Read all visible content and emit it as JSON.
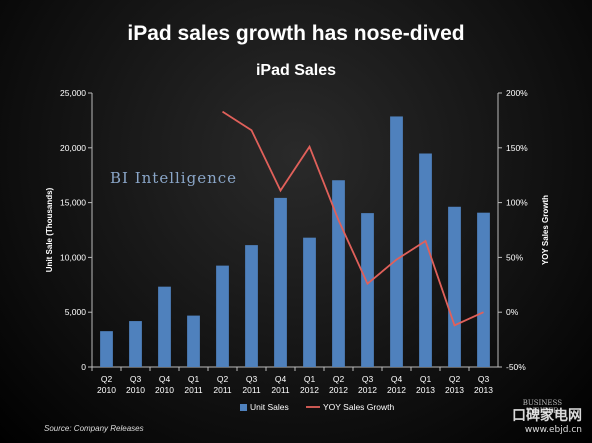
{
  "headline": "iPad sales growth has nose-dived",
  "watermark": "BI Intelligence",
  "source": "Source: Company Releases",
  "site_logo": {
    "main": "口碑家电网",
    "sub": "www.ebjd.cn"
  },
  "bi_logo": {
    "line1": "BUSINESS",
    "line2": "INSIDER"
  },
  "colors": {
    "bars": "#4f81bd",
    "line": "#e0605a"
  },
  "chart_data": {
    "type": "bar",
    "title": "iPad Sales",
    "categories": [
      [
        "Q2",
        "2010"
      ],
      [
        "Q3",
        "2010"
      ],
      [
        "Q4",
        "2010"
      ],
      [
        "Q1",
        "2011"
      ],
      [
        "Q2",
        "2011"
      ],
      [
        "Q3",
        "2011"
      ],
      [
        "Q4",
        "2011"
      ],
      [
        "Q1",
        "2012"
      ],
      [
        "Q2",
        "2012"
      ],
      [
        "Q3",
        "2012"
      ],
      [
        "Q4",
        "2012"
      ],
      [
        "Q1",
        "2013"
      ],
      [
        "Q2",
        "2013"
      ],
      [
        "Q3",
        "2013"
      ]
    ],
    "ylabel": "Unit Sale (Thousands)",
    "ylabel_right": "YOY Sales Growth",
    "ylim": [
      0,
      25000
    ],
    "yticks": [
      "0",
      "5,000",
      "10,000",
      "15,000",
      "20,000",
      "25,000"
    ],
    "ylim_right": [
      -50,
      200
    ],
    "yticks_right": [
      "-50%",
      "0%",
      "50%",
      "100%",
      "150%",
      "200%"
    ],
    "legend_position": "bottom",
    "series": [
      {
        "name": "Unit Sales",
        "type": "bar",
        "axis": "left",
        "values": [
          3270,
          4190,
          7330,
          4690,
          9250,
          11120,
          15430,
          11800,
          17040,
          14040,
          22860,
          19480,
          14620,
          14080
        ]
      },
      {
        "name": "YOY Sales Growth",
        "type": "line",
        "axis": "right",
        "values": [
          null,
          null,
          null,
          null,
          183,
          166,
          111,
          151,
          84,
          26,
          48,
          65,
          -12,
          0
        ]
      }
    ]
  }
}
